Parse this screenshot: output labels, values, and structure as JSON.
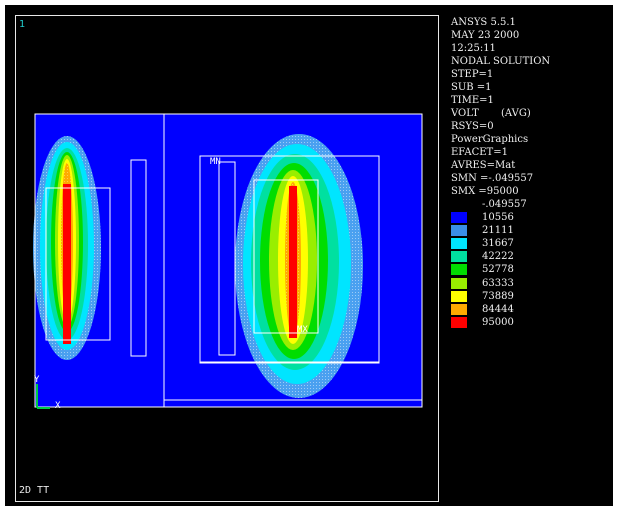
{
  "viewport": {
    "window_number": "1",
    "view_label": "2D TT",
    "axis_y_label": "Y",
    "axis_x_label": "X",
    "node_labels": [
      "MN",
      "MX"
    ]
  },
  "info": {
    "lines": [
      "ANSYS 5.5.1",
      "MAY 23 2000",
      "12:25:11",
      "NODAL SOLUTION",
      "STEP=1",
      "SUB =1",
      "TIME=1",
      "VOLT       (AVG)",
      "RSYS=0",
      "PowerGraphics",
      "EFACET=1",
      "AVRES=Mat",
      "SMN =-.049557",
      "SMX =95000"
    ]
  },
  "legend": {
    "min_label": "-.049557",
    "bands": [
      {
        "value": "10556",
        "color": "#0000ff"
      },
      {
        "value": "21111",
        "color": "#3a8ee8"
      },
      {
        "value": "31667",
        "color": "#00e5ff"
      },
      {
        "value": "42222",
        "color": "#00e0a0"
      },
      {
        "value": "52778",
        "color": "#00dd00"
      },
      {
        "value": "63333",
        "color": "#99ee00"
      },
      {
        "value": "73889",
        "color": "#ffff00"
      },
      {
        "value": "84444",
        "color": "#ffaa00"
      },
      {
        "value": "95000",
        "color": "#ff0000"
      }
    ]
  },
  "colors": {
    "background": "#000000",
    "model_outline": "#ffffff",
    "axis_green": "#00cc44",
    "window_number": "#22cccc"
  }
}
